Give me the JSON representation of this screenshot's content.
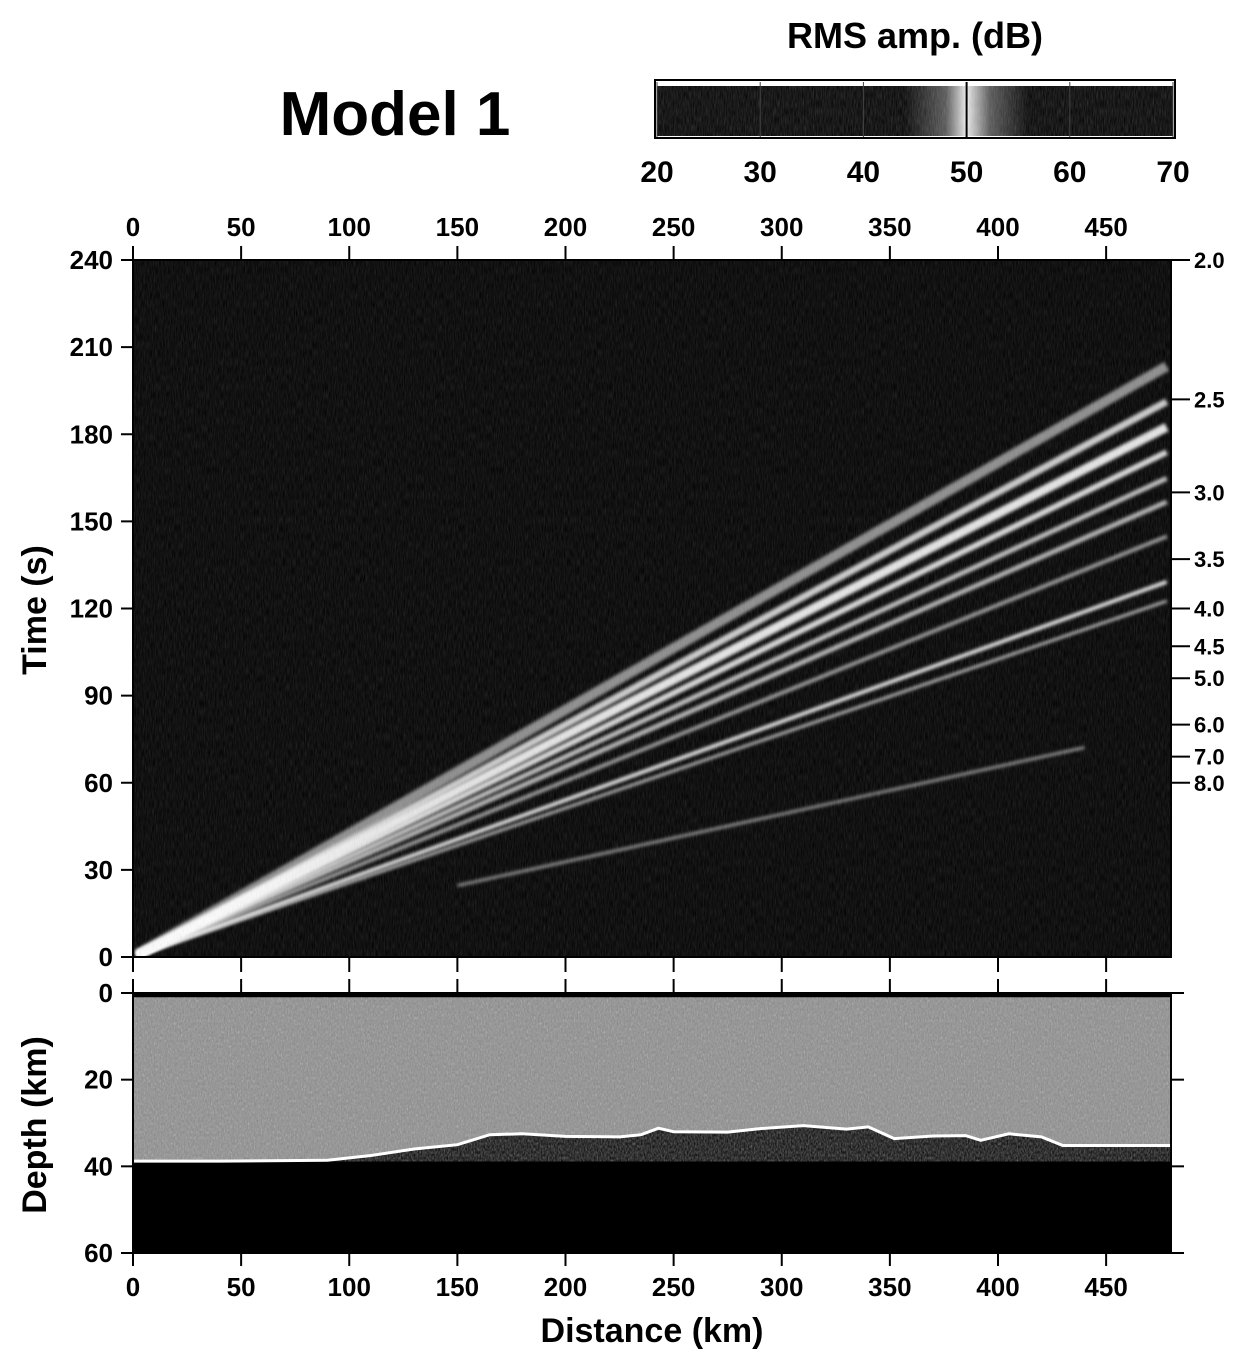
{
  "title": "Model 1",
  "colorbar": {
    "label": "RMS amp. (dB)",
    "min": 20,
    "max": 70,
    "ticks": [
      20,
      30,
      40,
      50,
      60,
      70
    ],
    "tick_labels": [
      "20",
      "30",
      "40",
      "50",
      "60",
      "70"
    ]
  },
  "chart_data": [
    {
      "type": "heatmap",
      "name": "record-section",
      "title": "Model 1",
      "xlabel": "",
      "ylabel": "Time (s)",
      "xlim": [
        0,
        480
      ],
      "ylim": [
        0,
        240
      ],
      "x_ticks": [
        0,
        50,
        100,
        150,
        200,
        250,
        300,
        350,
        400,
        450
      ],
      "x_tick_labels": [
        "0",
        "50",
        "100",
        "150",
        "200",
        "250",
        "300",
        "350",
        "400",
        "450"
      ],
      "y_ticks": [
        0,
        30,
        60,
        90,
        120,
        150,
        180,
        210,
        240
      ],
      "y_tick_labels": [
        "0",
        "30",
        "60",
        "90",
        "120",
        "150",
        "180",
        "210",
        "240"
      ],
      "colormap": "RMS amp. (dB)",
      "velocity_marks": [
        {
          "label": "2.0",
          "time": 240
        },
        {
          "label": "2.5",
          "time": 192
        },
        {
          "label": "3.0",
          "time": 160
        },
        {
          "label": "3.5",
          "time": 137
        },
        {
          "label": "4.0",
          "time": 120
        },
        {
          "label": "4.5",
          "time": 107
        },
        {
          "label": "5.0",
          "time": 96
        },
        {
          "label": "6.0",
          "time": 80
        },
        {
          "label": "7.0",
          "time": 69
        },
        {
          "label": "8.0",
          "time": 60
        }
      ]
    },
    {
      "type": "heatmap",
      "name": "depth-model",
      "xlabel": "Distance (km)",
      "ylabel": "Depth (km)",
      "xlim": [
        0,
        480
      ],
      "ylim": [
        0,
        60
      ],
      "y_reversed": true,
      "x_ticks": [
        0,
        50,
        100,
        150,
        200,
        250,
        300,
        350,
        400,
        450
      ],
      "x_tick_labels": [
        "0",
        "50",
        "100",
        "150",
        "200",
        "250",
        "300",
        "350",
        "400",
        "450"
      ],
      "y_ticks": [
        0,
        20,
        40,
        60
      ],
      "y_tick_labels": [
        "0",
        "20",
        "40",
        "60"
      ],
      "moho": {
        "distance": [
          0,
          40,
          90,
          110,
          130,
          150,
          165,
          180,
          200,
          225,
          235,
          243,
          250,
          275,
          290,
          310,
          330,
          340,
          352,
          370,
          385,
          392,
          405,
          420,
          430,
          480
        ],
        "depth": [
          38.8,
          38.8,
          38.6,
          37.5,
          36.0,
          35.0,
          32.7,
          32.5,
          33.1,
          33.2,
          32.7,
          31.2,
          32.0,
          32.1,
          31.3,
          30.6,
          31.4,
          30.9,
          33.6,
          33.0,
          32.9,
          34.0,
          32.5,
          33.2,
          35.2,
          35.2
        ]
      }
    }
  ]
}
